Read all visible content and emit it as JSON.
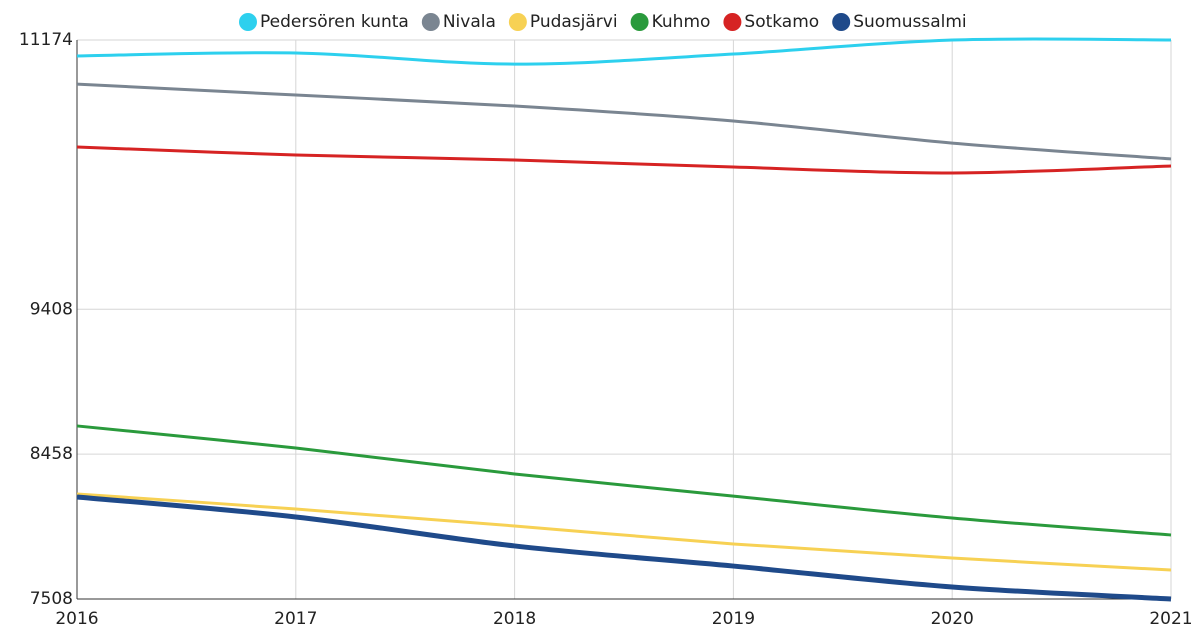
{
  "chart_data": {
    "type": "line",
    "categories": [
      "2016",
      "2017",
      "2018",
      "2019",
      "2020",
      "2021"
    ],
    "series": [
      {
        "name": "Pedersören kunta",
        "color": "#2dd0ee",
        "values": [
          11069,
          11089,
          11016,
          11082,
          11174,
          11174
        ]
      },
      {
        "name": "Nivala",
        "color": "#7a8591",
        "values": [
          10885,
          10813,
          10741,
          10643,
          10498,
          10394
        ]
      },
      {
        "name": "Pudasjärvi",
        "color": "#f7d154",
        "values": [
          8197,
          8098,
          7987,
          7869,
          7777,
          7698
        ]
      },
      {
        "name": "Kuhmo",
        "color": "#2a9a3c",
        "values": [
          8643,
          8498,
          8328,
          8183,
          8039,
          7928
        ]
      },
      {
        "name": "Sotkamo",
        "color": "#d62323",
        "values": [
          10472,
          10420,
          10387,
          10341,
          10302,
          10348
        ]
      },
      {
        "name": "Suomussalmi",
        "color": "#1f4a8a",
        "values": [
          8177,
          8046,
          7856,
          7724,
          7587,
          7508
        ]
      }
    ],
    "ylim": [
      7508,
      11174
    ],
    "yticks": [
      7508,
      8458,
      9408,
      11174
    ],
    "grid": true
  }
}
